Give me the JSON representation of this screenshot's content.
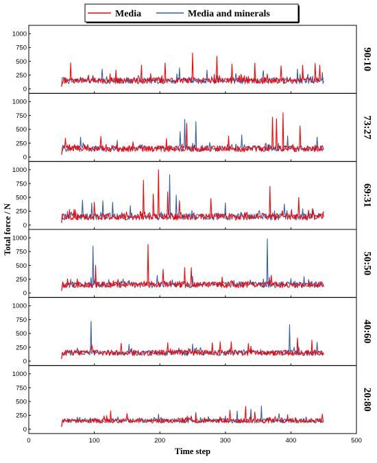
{
  "chart_data": {
    "type": "line",
    "xlabel": "Time step",
    "ylabel": "Total force / N",
    "xlim": [
      0,
      500
    ],
    "ylim": [
      -80,
      1150
    ],
    "x_ticks": [
      0,
      100,
      200,
      300,
      400,
      500
    ],
    "y_ticks": [
      0,
      250,
      500,
      750,
      1000
    ],
    "x_start": 50,
    "x_end": 450,
    "legend": {
      "placement": "top-center",
      "entries": [
        {
          "label": "Media",
          "color": "#ff0000"
        },
        {
          "label": "Media and minerals",
          "color": "#3060a8"
        }
      ]
    },
    "series_colors": {
      "media": "#ff0000",
      "media_and_minerals": "#3060a8"
    },
    "panels": [
      {
        "ratio": "90:10",
        "baseline": 150,
        "noise": 55,
        "media_peaks": [
          [
            64,
            470
          ],
          [
            133,
            340
          ],
          [
            172,
            430
          ],
          [
            208,
            470
          ],
          [
            250,
            650
          ],
          [
            287,
            590
          ],
          [
            310,
            450
          ],
          [
            345,
            470
          ],
          [
            385,
            420
          ],
          [
            418,
            430
          ],
          [
            437,
            460
          ],
          [
            444,
            430
          ]
        ],
        "minerals_peaks": [
          [
            112,
            360
          ],
          [
            230,
            380
          ],
          [
            272,
            340
          ],
          [
            358,
            330
          ],
          [
            410,
            360
          ],
          [
            448,
            300
          ]
        ]
      },
      {
        "ratio": "73:27",
        "baseline": 150,
        "noise": 55,
        "media_peaks": [
          [
            56,
            340
          ],
          [
            110,
            370
          ],
          [
            210,
            330
          ],
          [
            241,
            610
          ],
          [
            305,
            380
          ],
          [
            372,
            720
          ],
          [
            378,
            690
          ],
          [
            388,
            800
          ],
          [
            414,
            560
          ]
        ],
        "minerals_peaks": [
          [
            79,
            360
          ],
          [
            135,
            300
          ],
          [
            231,
            460
          ],
          [
            238,
            680
          ],
          [
            255,
            640
          ],
          [
            325,
            400
          ],
          [
            395,
            380
          ],
          [
            440,
            360
          ]
        ]
      },
      {
        "ratio": "69:31",
        "baseline": 150,
        "noise": 60,
        "media_peaks": [
          [
            100,
            410
          ],
          [
            175,
            810
          ],
          [
            190,
            560
          ],
          [
            198,
            1000
          ],
          [
            212,
            600
          ],
          [
            230,
            440
          ],
          [
            278,
            480
          ],
          [
            368,
            700
          ],
          [
            412,
            500
          ]
        ],
        "minerals_peaks": [
          [
            82,
            450
          ],
          [
            96,
            400
          ],
          [
            113,
            440
          ],
          [
            128,
            410
          ],
          [
            155,
            350
          ],
          [
            215,
            910
          ],
          [
            225,
            540
          ],
          [
            300,
            400
          ],
          [
            390,
            380
          ]
        ]
      },
      {
        "ratio": "50:50",
        "baseline": 150,
        "noise": 55,
        "media_peaks": [
          [
            102,
            500
          ],
          [
            182,
            880
          ],
          [
            205,
            430
          ],
          [
            238,
            460
          ],
          [
            248,
            460
          ],
          [
            295,
            290
          ],
          [
            370,
            320
          ]
        ],
        "minerals_peaks": [
          [
            98,
            850
          ],
          [
            196,
            320
          ],
          [
            250,
            300
          ],
          [
            364,
            980
          ],
          [
            420,
            300
          ]
        ]
      },
      {
        "ratio": "40:60",
        "baseline": 150,
        "noise": 50,
        "media_peaks": [
          [
            96,
            300
          ],
          [
            141,
            320
          ],
          [
            212,
            330
          ],
          [
            280,
            330
          ],
          [
            292,
            350
          ],
          [
            309,
            350
          ],
          [
            335,
            320
          ],
          [
            410,
            420
          ],
          [
            432,
            380
          ]
        ],
        "minerals_peaks": [
          [
            95,
            720
          ],
          [
            153,
            300
          ],
          [
            250,
            310
          ],
          [
            398,
            660
          ],
          [
            440,
            340
          ]
        ]
      },
      {
        "ratio": "20:80",
        "baseline": 150,
        "noise": 40,
        "media_peaks": [
          [
            125,
            330
          ],
          [
            150,
            280
          ],
          [
            255,
            300
          ],
          [
            307,
            340
          ],
          [
            331,
            410
          ],
          [
            345,
            310
          ],
          [
            395,
            260
          ],
          [
            448,
            270
          ]
        ],
        "minerals_peaks": [
          [
            198,
            270
          ],
          [
            318,
            330
          ],
          [
            339,
            360
          ],
          [
            355,
            420
          ],
          [
            382,
            280
          ]
        ]
      }
    ]
  }
}
